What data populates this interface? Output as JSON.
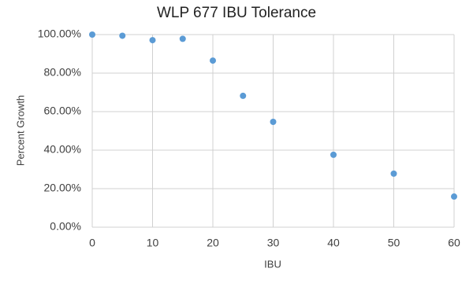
{
  "chart_data": {
    "type": "scatter",
    "title": "WLP 677 IBU Tolerance",
    "x_label": "IBU",
    "y_label": "Percent Growth",
    "x": [
      0,
      5,
      10,
      15,
      20,
      25,
      30,
      40,
      50,
      60
    ],
    "values": [
      100,
      99.4,
      97.1,
      97.8,
      86.5,
      68.2,
      54.7,
      37.6,
      27.8,
      15.9
    ],
    "color": "#5b9bd5",
    "xlim": [
      0,
      60
    ],
    "xticks": [
      0,
      10,
      20,
      30,
      40,
      50,
      60
    ],
    "ylim": [
      0,
      100
    ],
    "yticks": [
      {
        "value": 0,
        "label": "0.00%"
      },
      {
        "value": 20,
        "label": "20.00%"
      },
      {
        "value": 40,
        "label": "40.00%"
      },
      {
        "value": 60,
        "label": "60.00%"
      },
      {
        "value": 80,
        "label": "80.00%"
      },
      {
        "value": 100,
        "label": "100.00%"
      }
    ],
    "grid": true
  }
}
